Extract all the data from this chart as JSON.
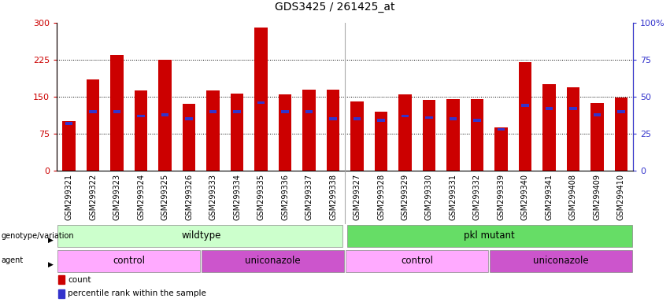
{
  "title": "GDS3425 / 261425_at",
  "samples": [
    "GSM299321",
    "GSM299322",
    "GSM299323",
    "GSM299324",
    "GSM299325",
    "GSM299326",
    "GSM299333",
    "GSM299334",
    "GSM299335",
    "GSM299336",
    "GSM299337",
    "GSM299338",
    "GSM299327",
    "GSM299328",
    "GSM299329",
    "GSM299330",
    "GSM299331",
    "GSM299332",
    "GSM299339",
    "GSM299340",
    "GSM299341",
    "GSM299408",
    "GSM299409",
    "GSM299410"
  ],
  "counts": [
    100,
    185,
    235,
    163,
    225,
    135,
    163,
    157,
    290,
    155,
    165,
    165,
    140,
    120,
    155,
    143,
    145,
    145,
    88,
    220,
    175,
    170,
    138,
    148
  ],
  "percentile_vals": [
    32,
    40,
    40,
    37,
    38,
    35,
    40,
    40,
    46,
    40,
    40,
    35,
    35,
    34,
    37,
    36,
    35,
    34,
    28,
    44,
    42,
    42,
    38,
    40
  ],
  "bar_color": "#cc0000",
  "blue_color": "#3333cc",
  "ylim_left": [
    0,
    300
  ],
  "ylim_right": [
    0,
    100
  ],
  "yticks_left": [
    0,
    75,
    150,
    225,
    300
  ],
  "yticks_right": [
    0,
    25,
    50,
    75,
    100
  ],
  "left_tick_color": "#cc0000",
  "right_tick_color": "#3333cc",
  "genotype_wildtype_label": "wildtype",
  "genotype_pkl_label": "pkl mutant",
  "genotype_wildtype_color": "#ccffcc",
  "genotype_pkl_color": "#66dd66",
  "agent_control_color": "#ffaaff",
  "agent_uniconazole_color": "#cc55cc",
  "agent_control_label": "control",
  "agent_uniconazole_label": "uniconazole",
  "wildtype_count": 12,
  "pkl_count": 12,
  "control_wt_count": 6,
  "uniconazole_wt_count": 6,
  "control_pkl_count": 6,
  "uniconazole_pkl_count": 6,
  "legend_count_label": "count",
  "legend_percentile_label": "percentile rank within the sample",
  "title_fontsize": 10,
  "tick_fontsize": 7,
  "annotation_fontsize": 8.5,
  "bar_width": 0.55
}
